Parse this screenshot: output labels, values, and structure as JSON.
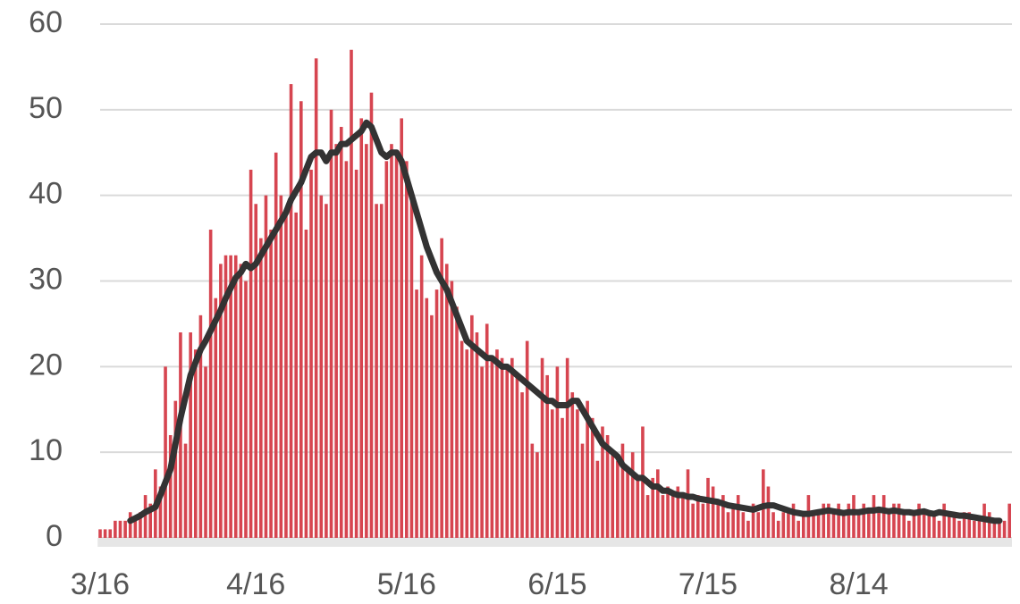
{
  "chart_data": {
    "type": "bar",
    "categories": [
      "3/16",
      null,
      null,
      null,
      null,
      null,
      null,
      null,
      null,
      null,
      null,
      null,
      null,
      null,
      null,
      null,
      null,
      null,
      null,
      null,
      null,
      null,
      null,
      null,
      null,
      null,
      null,
      null,
      null,
      null,
      null,
      "4/16",
      null,
      null,
      null,
      null,
      null,
      null,
      null,
      null,
      null,
      null,
      null,
      null,
      null,
      null,
      null,
      null,
      null,
      null,
      null,
      null,
      null,
      null,
      null,
      null,
      null,
      null,
      null,
      null,
      null,
      "5/16",
      null,
      null,
      null,
      null,
      null,
      null,
      null,
      null,
      null,
      null,
      null,
      null,
      null,
      null,
      null,
      null,
      null,
      null,
      null,
      null,
      null,
      null,
      null,
      null,
      null,
      null,
      null,
      null,
      null,
      "6/15",
      null,
      null,
      null,
      null,
      null,
      null,
      null,
      null,
      null,
      null,
      null,
      null,
      null,
      null,
      null,
      null,
      null,
      null,
      null,
      null,
      null,
      null,
      null,
      null,
      null,
      null,
      null,
      null,
      null,
      "7/15",
      null,
      null,
      null,
      null,
      null,
      null,
      null,
      null,
      null,
      null,
      null,
      null,
      null,
      null,
      null,
      null,
      null,
      null,
      null,
      null,
      null,
      null,
      null,
      null,
      null,
      null,
      null,
      null,
      null,
      "8/14",
      null,
      null,
      null,
      null,
      null,
      null,
      null,
      null,
      null,
      null,
      null,
      null,
      null,
      null,
      null,
      null,
      null,
      null,
      null,
      null,
      null,
      null,
      null,
      null,
      null,
      null,
      null,
      null,
      null,
      null
    ],
    "series": [
      {
        "type": "bar",
        "color": "#d64550",
        "values": [
          1,
          1,
          1,
          2,
          2,
          2,
          3,
          2,
          3,
          5,
          4,
          8,
          6,
          20,
          12,
          16,
          24,
          11,
          24,
          22,
          26,
          20,
          36,
          28,
          32,
          33,
          33,
          33,
          32,
          30,
          43,
          39,
          35,
          40,
          36,
          45,
          40,
          38,
          53,
          38,
          51,
          36,
          43,
          56,
          40,
          39,
          50,
          46,
          48,
          44,
          57,
          43,
          49,
          46,
          52,
          39,
          39,
          44,
          46,
          45,
          49,
          44,
          40,
          29,
          33,
          28,
          26,
          29,
          35,
          32,
          30,
          27,
          23,
          22,
          26,
          24,
          20,
          25,
          21,
          22,
          21,
          20,
          21,
          19,
          17,
          23,
          11,
          10,
          21,
          19,
          15,
          20,
          14,
          21,
          17,
          15,
          11,
          16,
          14,
          9,
          13,
          12,
          10,
          9,
          11,
          8,
          10,
          7,
          13,
          5,
          7,
          8,
          5,
          6,
          5,
          6,
          5,
          8,
          4,
          5,
          4,
          7,
          6,
          4,
          5,
          3,
          4,
          5,
          3,
          2,
          4,
          3,
          8,
          6,
          3,
          2,
          3,
          3,
          4,
          2,
          3,
          5,
          3,
          3,
          4,
          4,
          3,
          4,
          3,
          4,
          5,
          3,
          4,
          3,
          5,
          3,
          5,
          3,
          4,
          4,
          3,
          2,
          3,
          4,
          3,
          3,
          3,
          2,
          4,
          3,
          3,
          2,
          3,
          3,
          2,
          2,
          4,
          3,
          2,
          2,
          2,
          4
        ]
      },
      {
        "type": "line",
        "color": "#333333",
        "values": [
          null,
          null,
          null,
          null,
          null,
          null,
          2,
          2.3,
          2.6,
          3,
          3.3,
          3.6,
          5,
          6.5,
          8,
          11,
          14,
          16.5,
          19,
          20.5,
          22,
          23,
          24.2,
          25.4,
          26.6,
          28,
          29.2,
          30.4,
          31,
          32,
          31.5,
          32,
          33,
          34,
          35,
          36,
          37,
          38,
          39.5,
          40.5,
          41.5,
          43,
          44.5,
          45,
          45,
          44,
          45,
          45,
          46,
          46,
          46.5,
          47,
          47.5,
          48.5,
          48,
          46.5,
          45,
          44.5,
          45,
          45,
          44,
          42,
          40,
          38,
          36,
          34,
          32.5,
          31,
          30,
          29,
          27.5,
          26,
          24.5,
          23,
          22.5,
          22,
          21.5,
          21,
          21,
          20.5,
          20,
          20,
          19.5,
          19,
          18.5,
          18,
          17.5,
          17,
          16.5,
          16,
          16,
          15.5,
          15.5,
          15.5,
          16,
          16,
          15,
          14,
          13,
          12,
          11,
          10.5,
          10,
          9.5,
          8.5,
          8,
          7.5,
          7,
          7,
          6.5,
          6,
          6,
          5.5,
          5.5,
          5.2,
          5,
          5,
          4.8,
          4.8,
          4.6,
          4.5,
          4.4,
          4.3,
          4.2,
          4,
          3.8,
          3.7,
          3.6,
          3.5,
          3.4,
          3.3,
          3.5,
          3.7,
          3.8,
          3.8,
          3.6,
          3.4,
          3.2,
          3,
          2.9,
          2.8,
          2.8,
          2.9,
          3,
          3.1,
          3.2,
          3.1,
          3,
          2.9,
          3,
          3,
          3,
          3.1,
          3.2,
          3.2,
          3.3,
          3.2,
          3.1,
          3.2,
          3.1,
          3,
          3,
          2.9,
          3,
          3.1,
          2.9,
          2.8,
          3,
          2.9,
          2.8,
          2.7,
          2.6,
          2.6,
          2.5,
          2.4,
          2.3,
          2.2,
          2.1,
          2,
          2,
          null,
          null
        ]
      }
    ],
    "ylim": [
      0,
      60
    ],
    "yticks": [
      0,
      10,
      20,
      30,
      40,
      50,
      60
    ],
    "grid": true
  }
}
